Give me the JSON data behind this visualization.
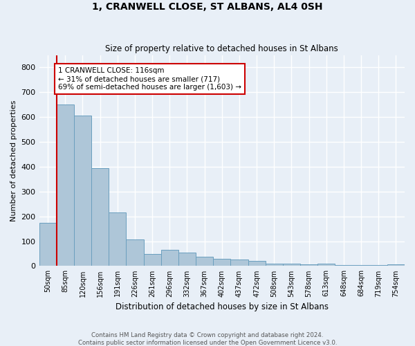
{
  "title": "1, CRANWELL CLOSE, ST ALBANS, AL4 0SH",
  "subtitle": "Size of property relative to detached houses in St Albans",
  "xlabel": "Distribution of detached houses by size in St Albans",
  "ylabel": "Number of detached properties",
  "bins": [
    "50sqm",
    "85sqm",
    "120sqm",
    "156sqm",
    "191sqm",
    "226sqm",
    "261sqm",
    "296sqm",
    "332sqm",
    "367sqm",
    "402sqm",
    "437sqm",
    "472sqm",
    "508sqm",
    "543sqm",
    "578sqm",
    "613sqm",
    "648sqm",
    "684sqm",
    "719sqm",
    "754sqm"
  ],
  "values": [
    175,
    650,
    605,
    395,
    215,
    107,
    48,
    65,
    55,
    38,
    28,
    25,
    22,
    10,
    10,
    8,
    10,
    5,
    5,
    5,
    8
  ],
  "bar_color": "#aec6d8",
  "bar_edge_color": "#6a9fbe",
  "bg_color": "#e8eff7",
  "grid_color": "#ffffff",
  "property_line_x": 0.5,
  "annotation_text": "1 CRANWELL CLOSE: 116sqm\n← 31% of detached houses are smaller (717)\n69% of semi-detached houses are larger (1,603) →",
  "annotation_box_color": "#ffffff",
  "annotation_box_edge": "#cc0000",
  "property_line_color": "#cc0000",
  "footer_line1": "Contains HM Land Registry data © Crown copyright and database right 2024.",
  "footer_line2": "Contains public sector information licensed under the Open Government Licence v3.0.",
  "ylim": [
    0,
    850
  ],
  "yticks": [
    0,
    100,
    200,
    300,
    400,
    500,
    600,
    700,
    800
  ]
}
